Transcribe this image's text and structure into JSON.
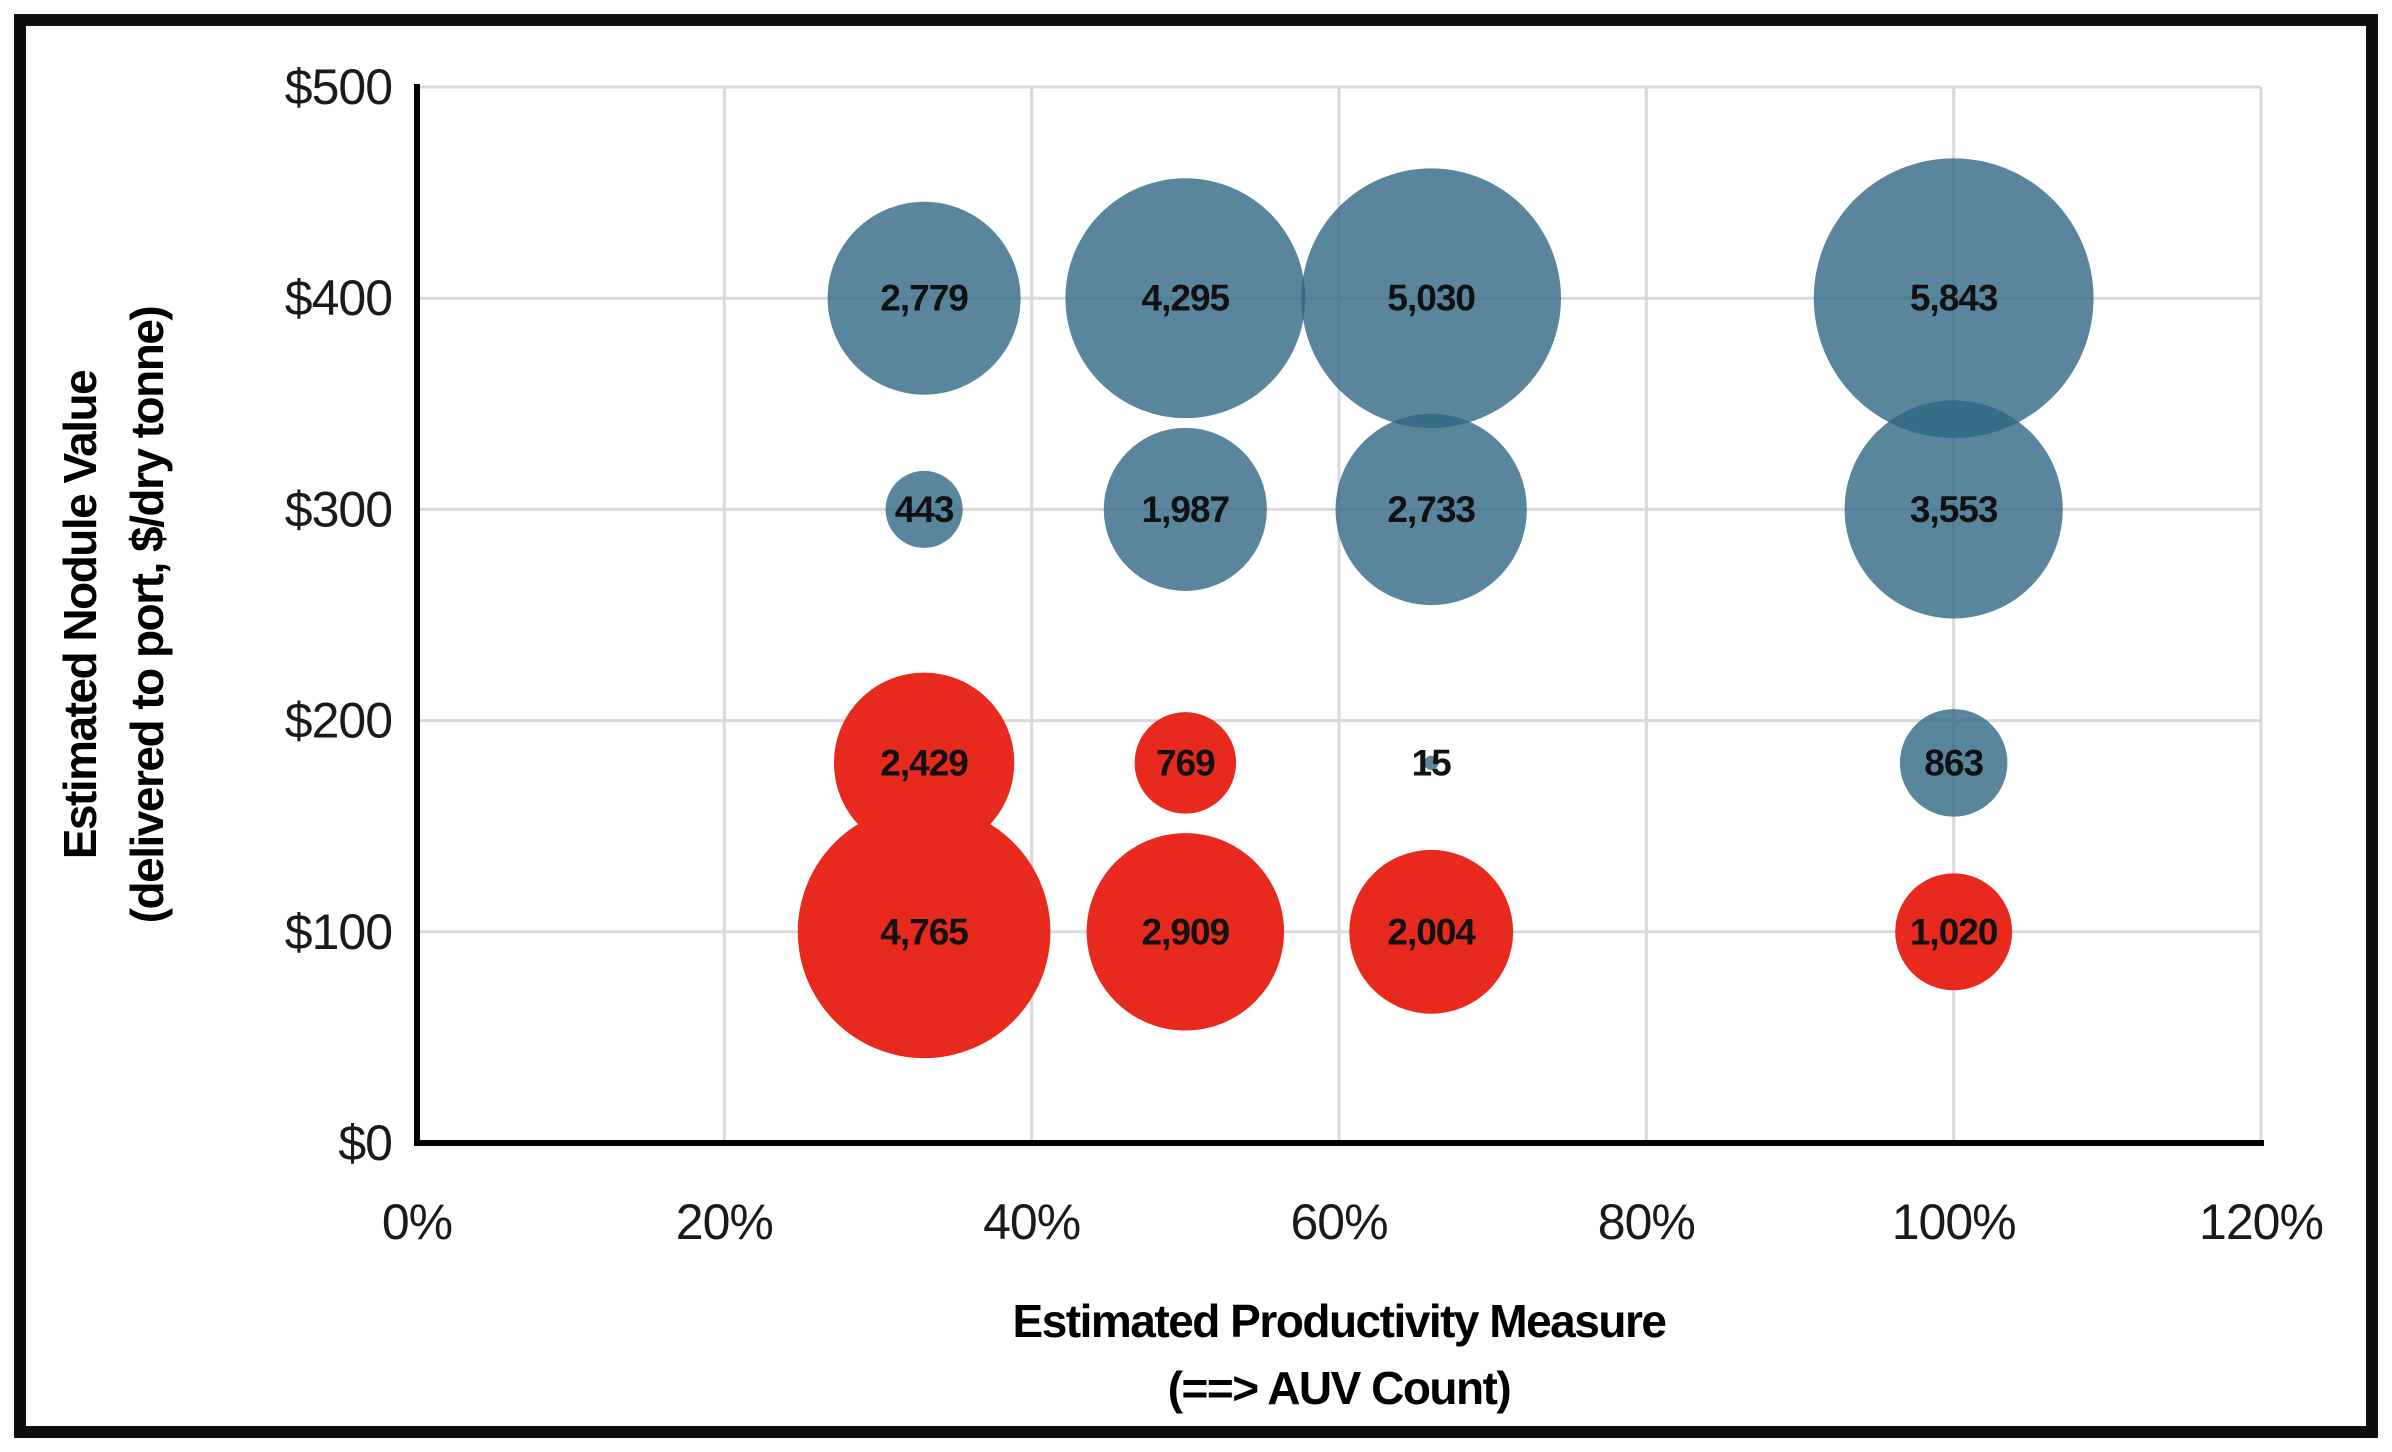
{
  "y_axis": {
    "title_line1": "Estimated Nodule Value",
    "title_line2": "(delivered to port, $/dry tonne)",
    "ticks": [
      {
        "label": "$0",
        "value": 0
      },
      {
        "label": "$100",
        "value": 100
      },
      {
        "label": "$200",
        "value": 200
      },
      {
        "label": "$300",
        "value": 300
      },
      {
        "label": "$400",
        "value": 400
      },
      {
        "label": "$500",
        "value": 500
      }
    ],
    "range": [
      0,
      500
    ]
  },
  "x_axis": {
    "title_line1": "Estimated Productivity Measure",
    "title_line2": "(==> AUV Count)",
    "ticks": [
      {
        "label": "0%",
        "value": 0
      },
      {
        "label": "20%",
        "value": 20
      },
      {
        "label": "40%",
        "value": 40
      },
      {
        "label": "60%",
        "value": 60
      },
      {
        "label": "80%",
        "value": 80
      },
      {
        "label": "100%",
        "value": 100
      },
      {
        "label": "120%",
        "value": 120
      }
    ],
    "range": [
      0,
      120
    ]
  },
  "chart_data": {
    "type": "bubble",
    "size_encoding": "area",
    "grid": true,
    "xlim": [
      0,
      120
    ],
    "ylim": [
      0,
      500
    ],
    "xlabel": "Estimated Productivity Measure (==> AUV Count)",
    "ylabel": "Estimated Nodule Value (delivered to port, $/dry tonne)",
    "series": [
      {
        "name": "blue-series",
        "color": "#2F6685",
        "fill_opacity": 0.8,
        "points": [
          {
            "x": 33,
            "y": 400,
            "size": 2779,
            "label": "2,779"
          },
          {
            "x": 50,
            "y": 400,
            "size": 4295,
            "label": "4,295"
          },
          {
            "x": 66,
            "y": 400,
            "size": 5030,
            "label": "5,030"
          },
          {
            "x": 100,
            "y": 400,
            "size": 5843,
            "label": "5,843"
          },
          {
            "x": 33,
            "y": 300,
            "size": 443,
            "label": "443"
          },
          {
            "x": 50,
            "y": 300,
            "size": 1987,
            "label": "1,987"
          },
          {
            "x": 66,
            "y": 300,
            "size": 2733,
            "label": "2,733"
          },
          {
            "x": 100,
            "y": 300,
            "size": 3553,
            "label": "3,553"
          },
          {
            "x": 66,
            "y": 180,
            "size": 15,
            "label": "15"
          },
          {
            "x": 100,
            "y": 180,
            "size": 863,
            "label": "863"
          }
        ]
      },
      {
        "name": "red-series",
        "color": "#E8291D",
        "fill_opacity": 1,
        "points": [
          {
            "x": 33,
            "y": 180,
            "size": 2429,
            "label": "2,429"
          },
          {
            "x": 50,
            "y": 180,
            "size": 769,
            "label": "769"
          },
          {
            "x": 33,
            "y": 100,
            "size": 4765,
            "label": "4,765"
          },
          {
            "x": 50,
            "y": 100,
            "size": 2909,
            "label": "2,909"
          },
          {
            "x": 66,
            "y": 100,
            "size": 2004,
            "label": "2,004"
          },
          {
            "x": 100,
            "y": 100,
            "size": 1020,
            "label": "1,020"
          }
        ]
      }
    ]
  },
  "colors": {
    "gridline": "#D9D9D9",
    "axis_line": "#000000",
    "data_label": "#111111",
    "tick_label": "#1a1a1a",
    "frame_border": "#0d0d0d"
  }
}
